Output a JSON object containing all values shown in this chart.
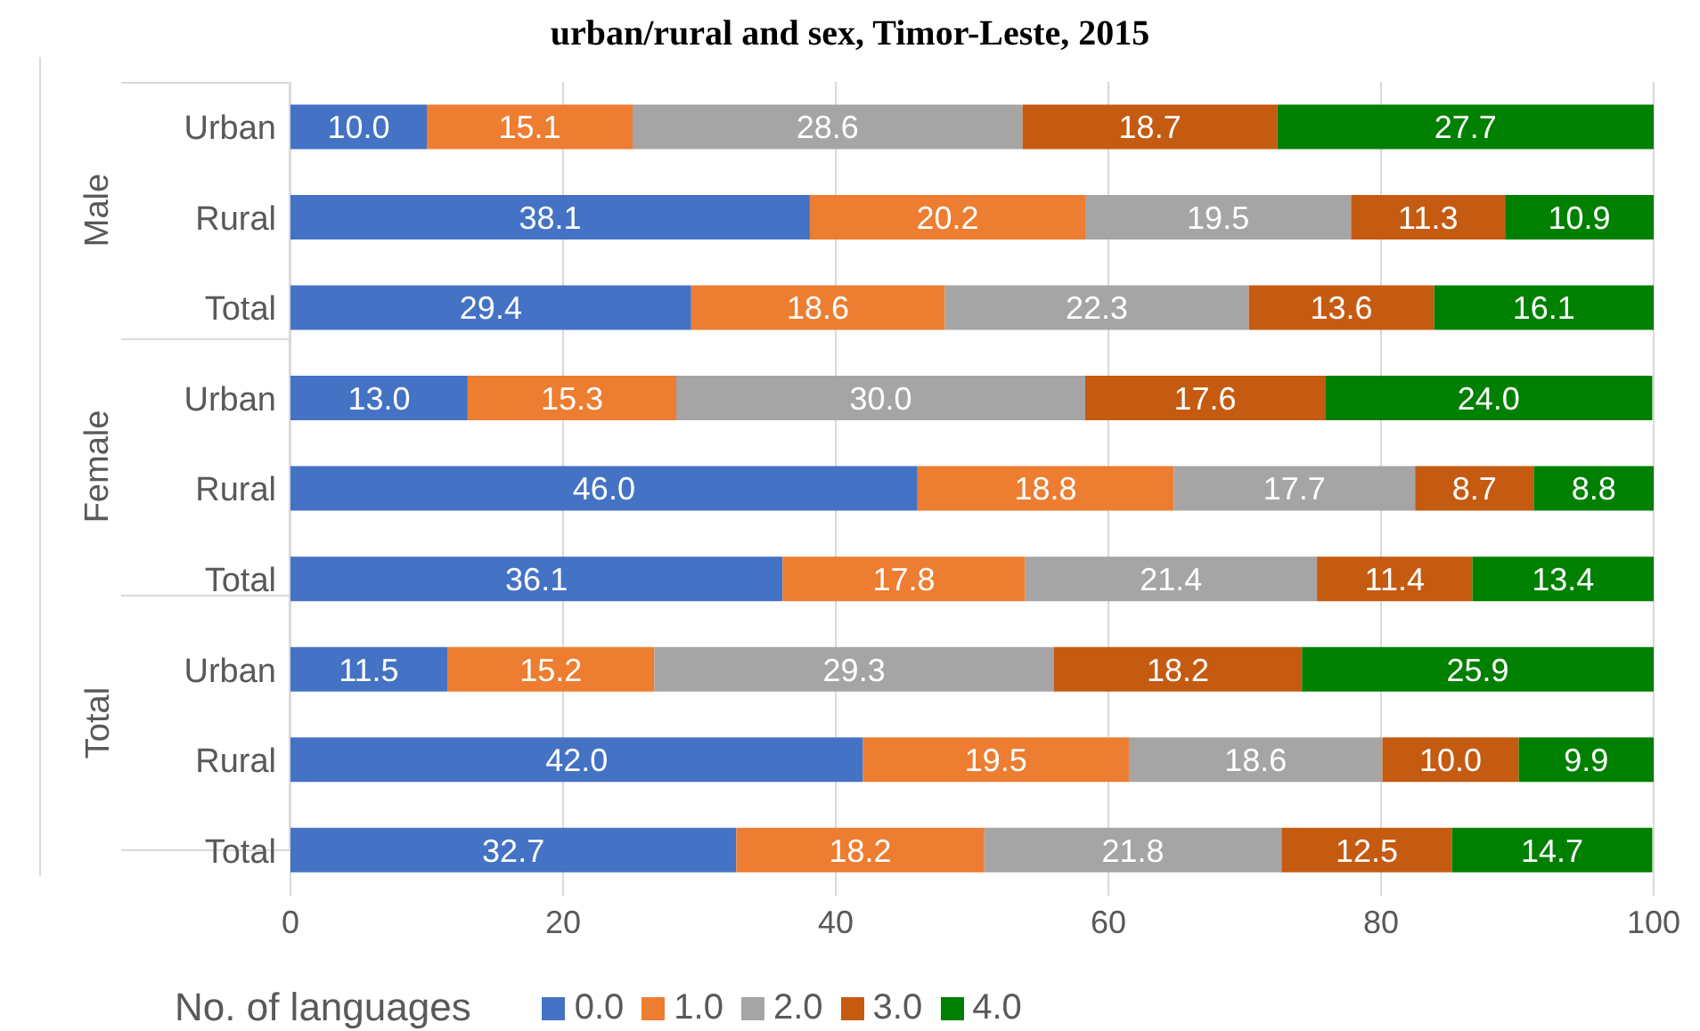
{
  "chart_data": {
    "type": "bar",
    "orientation": "horizontal",
    "stacked": true,
    "title": "urban/rural and sex, Timor-Leste, 2015",
    "legend_title": "No. of languages",
    "categories": [
      "Urban",
      "Rural",
      "Total",
      "Urban",
      "Rural",
      "Total",
      "Urban",
      "Rural",
      "Total"
    ],
    "annotations": [
      "Male",
      "Female",
      "Total"
    ],
    "series": [
      {
        "name": "0.0",
        "color": "#4472c4",
        "values": [
          10.0,
          38.1,
          29.4,
          13.0,
          46.0,
          36.1,
          11.5,
          42.0,
          32.7
        ],
        "value_labels": [
          "10.0",
          "38.1",
          "29.4",
          "13.0",
          "46.0",
          "36.1",
          "11.5",
          "42.0",
          "32.7"
        ]
      },
      {
        "name": "1.0",
        "color": "#ed7d31",
        "values": [
          15.1,
          20.2,
          18.6,
          15.3,
          18.8,
          17.8,
          15.2,
          19.5,
          18.2
        ],
        "value_labels": [
          "15.1",
          "20.2",
          "18.6",
          "15.3",
          "18.8",
          "17.8",
          "15.2",
          "19.5",
          "18.2"
        ]
      },
      {
        "name": "2.0",
        "color": "#a5a5a5",
        "values": [
          28.6,
          19.5,
          22.3,
          30.0,
          17.7,
          21.4,
          29.3,
          18.6,
          21.8
        ],
        "value_labels": [
          "28.6",
          "19.5",
          "22.3",
          "30.0",
          "17.7",
          "21.4",
          "29.3",
          "18.6",
          "21.8"
        ]
      },
      {
        "name": "3.0",
        "color": "#c55a11",
        "values": [
          18.7,
          11.3,
          13.6,
          17.6,
          8.7,
          11.4,
          18.2,
          10.0,
          12.5
        ],
        "value_labels": [
          "18.7",
          "11.3",
          "13.6",
          "17.6",
          "8.7",
          "11.4",
          "18.2",
          "10.0",
          "12.5"
        ]
      },
      {
        "name": "4.0",
        "color": "#008000",
        "values": [
          27.7,
          10.9,
          16.1,
          24.0,
          8.8,
          13.4,
          25.9,
          9.9,
          14.7
        ],
        "value_labels": [
          "27.7",
          "10.9",
          "16.1",
          "24.0",
          "8.8",
          "13.4",
          "25.9",
          "9.9",
          "14.7"
        ]
      }
    ],
    "xlim": [
      0,
      100
    ],
    "xticks": [
      0,
      20,
      40,
      60,
      80,
      100
    ],
    "grid": "x",
    "legend": "bottom"
  }
}
